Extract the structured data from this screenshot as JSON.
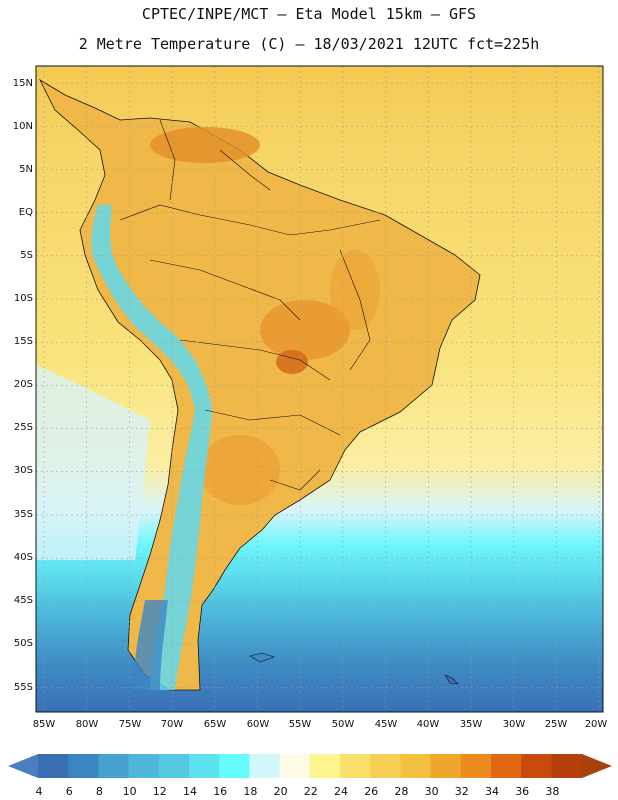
{
  "title_line1": "CPTEC/INPE/MCT –  Eta Model 15km – GFS",
  "title_line2": "2 Metre Temperature (C) – 18/03/2021 12UTC fct=225h",
  "map": {
    "lat_labels": [
      "15N",
      "10N",
      "5N",
      "EQ",
      "5S",
      "10S",
      "15S",
      "20S",
      "25S",
      "30S",
      "35S",
      "40S",
      "45S",
      "50S",
      "55S"
    ],
    "lon_labels": [
      "85W",
      "80W",
      "75W",
      "70W",
      "65W",
      "60W",
      "55W",
      "50W",
      "45W",
      "40W",
      "35W",
      "30W",
      "25W",
      "20W"
    ]
  },
  "colorbar": {
    "labels": [
      "4",
      "6",
      "8",
      "10",
      "12",
      "14",
      "16",
      "18",
      "20",
      "22",
      "24",
      "26",
      "28",
      "30",
      "32",
      "34",
      "36",
      "38"
    ],
    "colors": [
      "#3a6fb4",
      "#3b86c2",
      "#46a2cf",
      "#4fb7d9",
      "#57c8e2",
      "#5ee1ee",
      "#66fbfd",
      "#d0f7fb",
      "#fdfae6",
      "#fdf38f",
      "#f9e06a",
      "#f5ce53",
      "#f2c03f",
      "#f0a52b",
      "#ed8c1e",
      "#e06813",
      "#c84a0c",
      "#b6400c"
    ],
    "low_arrow_color": "#4a7ec0",
    "high_arrow_color": "#a7420f"
  }
}
